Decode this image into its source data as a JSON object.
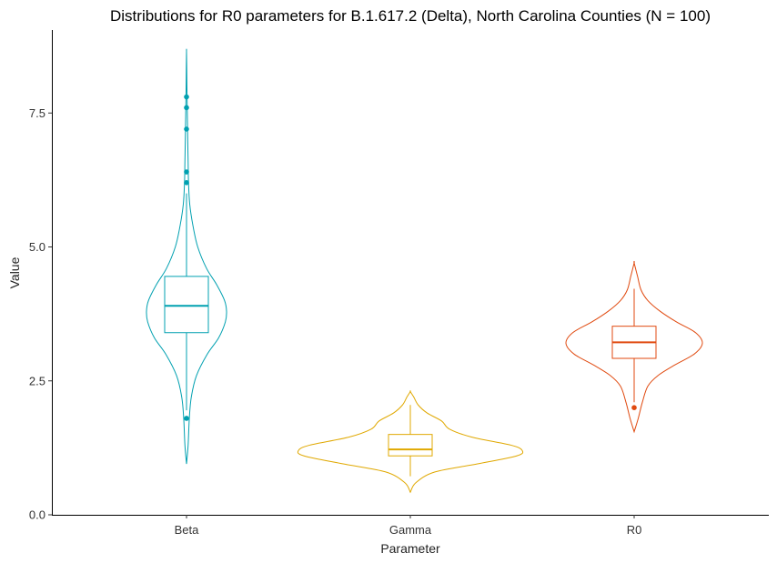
{
  "chart_data": {
    "type": "violin",
    "title": "Distributions for R0 parameters for B.1.617.2 (Delta), North Carolina Counties (N = 100)",
    "xlabel": "Parameter",
    "ylabel": "Value",
    "ylim": [
      0,
      9
    ],
    "yticks": [
      0.0,
      2.5,
      5.0,
      7.5
    ],
    "ytick_labels": [
      "0.0",
      "2.5",
      "5.0",
      "7.5"
    ],
    "grid": false,
    "legend": "none",
    "categories": [
      "Beta",
      "Gamma",
      "R0"
    ],
    "series": [
      {
        "category": "Beta",
        "color": "#00A0B0",
        "range": [
          0.95,
          8.65
        ],
        "box": {
          "q1": 3.4,
          "median": 3.9,
          "q3": 4.45,
          "whisker_low": 1.95,
          "whisker_high": 6.0
        },
        "outliers": [
          1.8,
          6.2,
          6.4,
          7.2,
          7.6,
          7.8
        ],
        "density": [
          [
            0.95,
            0.0
          ],
          [
            1.3,
            0.04
          ],
          [
            1.8,
            0.07
          ],
          [
            2.2,
            0.12
          ],
          [
            2.6,
            0.25
          ],
          [
            3.0,
            0.52
          ],
          [
            3.3,
            0.8
          ],
          [
            3.6,
            0.97
          ],
          [
            3.8,
            1.0
          ],
          [
            4.0,
            0.95
          ],
          [
            4.3,
            0.75
          ],
          [
            4.6,
            0.5
          ],
          [
            5.0,
            0.28
          ],
          [
            5.4,
            0.16
          ],
          [
            5.8,
            0.08
          ],
          [
            6.2,
            0.05
          ],
          [
            6.6,
            0.04
          ],
          [
            7.0,
            0.03
          ],
          [
            7.5,
            0.02
          ],
          [
            8.0,
            0.01
          ],
          [
            8.3,
            0.006
          ],
          [
            8.65,
            0.0
          ]
        ]
      },
      {
        "category": "Gamma",
        "color": "#E0A800",
        "range": [
          0.42,
          2.3
        ],
        "box": {
          "q1": 1.1,
          "median": 1.22,
          "q3": 1.5,
          "whisker_low": 0.72,
          "whisker_high": 2.05
        },
        "outliers": [],
        "density": [
          [
            0.42,
            0.0
          ],
          [
            0.6,
            0.05
          ],
          [
            0.8,
            0.22
          ],
          [
            0.95,
            0.6
          ],
          [
            1.1,
            0.95
          ],
          [
            1.2,
            1.0
          ],
          [
            1.3,
            0.9
          ],
          [
            1.45,
            0.55
          ],
          [
            1.6,
            0.35
          ],
          [
            1.75,
            0.28
          ],
          [
            1.9,
            0.15
          ],
          [
            2.05,
            0.07
          ],
          [
            2.2,
            0.03
          ],
          [
            2.3,
            0.0
          ]
        ]
      },
      {
        "category": "R0",
        "color": "#E04A10",
        "range": [
          1.55,
          4.7
        ],
        "box": {
          "q1": 2.92,
          "median": 3.22,
          "q3": 3.52,
          "whisker_low": 2.1,
          "whisker_high": 4.22
        },
        "outliers": [
          2.0
        ],
        "density": [
          [
            1.55,
            0.0
          ],
          [
            1.8,
            0.06
          ],
          [
            2.1,
            0.12
          ],
          [
            2.4,
            0.2
          ],
          [
            2.6,
            0.35
          ],
          [
            2.8,
            0.6
          ],
          [
            3.0,
            0.88
          ],
          [
            3.2,
            1.0
          ],
          [
            3.4,
            0.9
          ],
          [
            3.6,
            0.62
          ],
          [
            3.8,
            0.38
          ],
          [
            4.0,
            0.2
          ],
          [
            4.2,
            0.1
          ],
          [
            4.45,
            0.05
          ],
          [
            4.7,
            0.0
          ]
        ]
      }
    ]
  }
}
